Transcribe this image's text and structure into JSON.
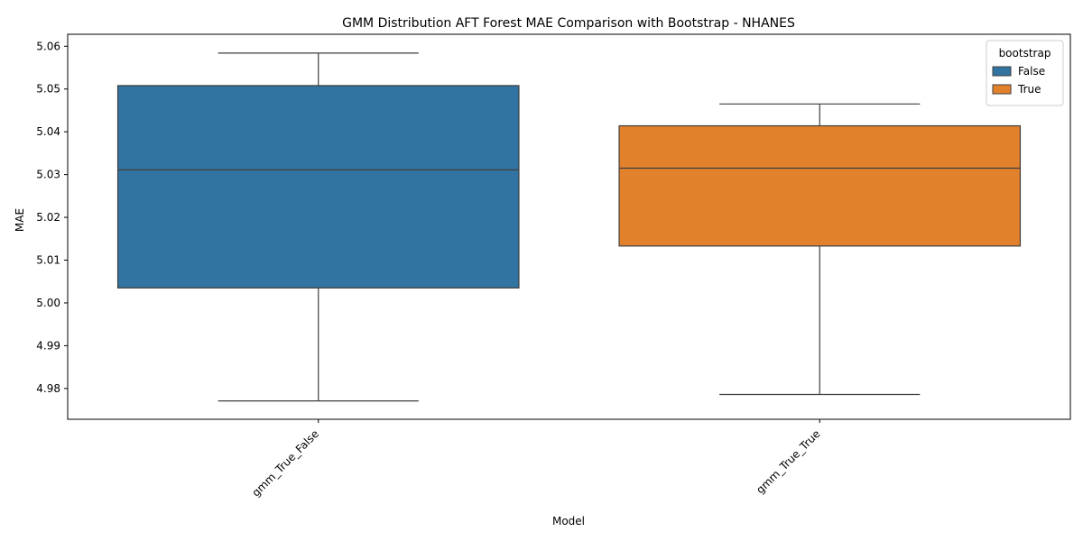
{
  "chart_data": {
    "type": "box",
    "title": "GMM Distribution AFT Forest MAE Comparison with Bootstrap  - NHANES",
    "xlabel": "Model",
    "ylabel": "MAE",
    "ylim": [
      4.9728,
      5.0628
    ],
    "yticks": [
      4.98,
      4.99,
      5.0,
      5.01,
      5.02,
      5.03,
      5.04,
      5.05,
      5.06
    ],
    "ytick_labels": [
      "4.98",
      "4.99",
      "5.00",
      "5.01",
      "5.02",
      "5.03",
      "5.04",
      "5.05",
      "5.06"
    ],
    "categories": [
      "gmm_True_False",
      "gmm_True_True"
    ],
    "legend": {
      "title": "bootstrap",
      "position": "top-right",
      "entries": [
        {
          "label": "False",
          "color": "#3274a1"
        },
        {
          "label": "True",
          "color": "#e1812c"
        }
      ]
    },
    "series": [
      {
        "name": "False",
        "category": "gmm_True_False",
        "color": "#3274a1",
        "whisker_low": 4.9771,
        "q1": 5.0035,
        "median": 5.0311,
        "q3": 5.0508,
        "whisker_high": 5.0584
      },
      {
        "name": "True",
        "category": "gmm_True_True",
        "color": "#e1812c",
        "whisker_low": 4.9786,
        "q1": 5.0133,
        "median": 5.0315,
        "q3": 5.0414,
        "whisker_high": 5.0465
      }
    ]
  }
}
